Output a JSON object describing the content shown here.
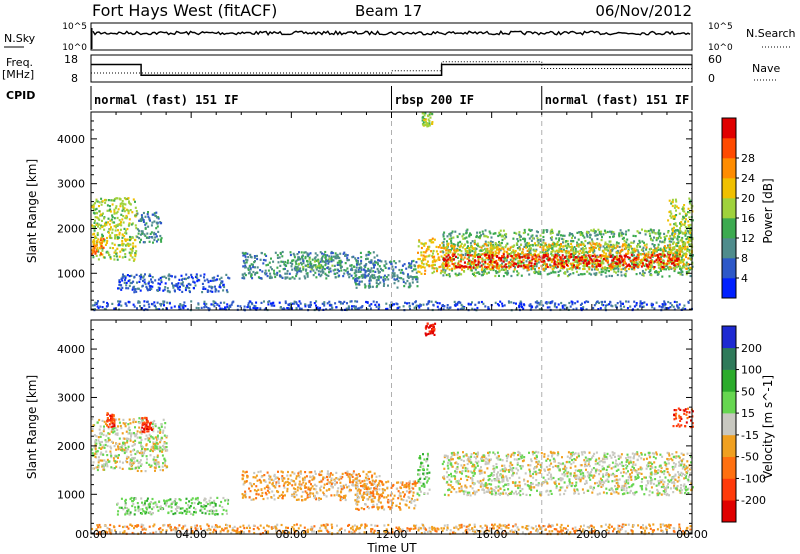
{
  "chart_data": {
    "type": "heatmap",
    "title": "Fort Hays West (fitACF)",
    "beam": "Beam 17",
    "date": "06/Nov/2012",
    "xlabel": "Time UT",
    "x_ticks": [
      "00:00",
      "04:00",
      "08:00",
      "12:00",
      "16:00",
      "20:00",
      "00:00"
    ],
    "xlim_hours": [
      0,
      24
    ],
    "top_panels": {
      "noise": {
        "left_label": "N.Sky",
        "right_label": "N.Search",
        "left_ticks": [
          "10^5",
          "10^0"
        ],
        "right_ticks": [
          "10^5",
          "10^0"
        ]
      },
      "frequency": {
        "left_label": "Freq.",
        "left_unit": "[MHz]",
        "left_ticks": [
          "18",
          "8"
        ],
        "right_label": "Nave",
        "right_ticks": [
          "60",
          "0"
        ],
        "freq_steps": [
          {
            "t0": 0.0,
            "t1": 2.0,
            "mhz": 14.5
          },
          {
            "t0": 2.0,
            "t1": 12.0,
            "mhz": 10.5
          },
          {
            "t0": 12.0,
            "t1": 14.0,
            "mhz": 10.5
          },
          {
            "t0": 14.0,
            "t1": 24.0,
            "mhz": 14.5
          }
        ],
        "nave_steps": [
          {
            "t0": 0.0,
            "t1": 2.0,
            "n": 20
          },
          {
            "t0": 2.0,
            "t1": 12.0,
            "n": 20
          },
          {
            "t0": 12.0,
            "t1": 14.0,
            "n": 25
          },
          {
            "t0": 14.0,
            "t1": 18.0,
            "n": 45
          },
          {
            "t0": 18.0,
            "t1": 24.0,
            "n": 30
          }
        ]
      },
      "cpid": {
        "label": "CPID",
        "segments": [
          {
            "t0": 0.0,
            "t1": 12.0,
            "name": "normal (fast) 151 IF"
          },
          {
            "t0": 12.0,
            "t1": 18.0,
            "name": "rbsp 200 IF"
          },
          {
            "t0": 18.0,
            "t1": 24.0,
            "name": "normal (fast) 151 IF"
          }
        ]
      }
    },
    "panels": [
      {
        "name": "power",
        "ylabel": "Slant Range [km]",
        "y_ticks": [
          1000,
          2000,
          3000,
          4000
        ],
        "ylim_km": [
          180,
          4600
        ],
        "colorbar": {
          "label": "Power [dB]",
          "ticks": [
            "4",
            "8",
            "12",
            "16",
            "20",
            "24",
            "28"
          ],
          "colors": [
            "#0020ff",
            "#2d58c8",
            "#4f8c8c",
            "#3caa50",
            "#9fd23c",
            "#f0c000",
            "#ff8c00",
            "#ff4a00",
            "#e00000"
          ]
        },
        "regions": [
          {
            "t0": 0.0,
            "t1": 1.8,
            "r0": 1300,
            "r1": 2700,
            "level": 4
          },
          {
            "t0": 0.0,
            "t1": 0.5,
            "r0": 1450,
            "r1": 1800,
            "level": 6
          },
          {
            "t0": 1.8,
            "t1": 2.8,
            "r0": 1700,
            "r1": 2400,
            "level": 2
          },
          {
            "t0": 1.0,
            "t1": 5.5,
            "r0": 600,
            "r1": 1000,
            "level": 1
          },
          {
            "t0": 6.0,
            "t1": 11.5,
            "r0": 900,
            "r1": 1500,
            "level": 2
          },
          {
            "t0": 8.0,
            "t1": 10.0,
            "r0": 1100,
            "r1": 1400,
            "level": 3
          },
          {
            "t0": 10.5,
            "t1": 13.0,
            "r0": 700,
            "r1": 1300,
            "level": 2
          },
          {
            "t0": 13.0,
            "t1": 14.0,
            "r0": 1000,
            "r1": 1800,
            "level": 5
          },
          {
            "t0": 13.2,
            "t1": 13.6,
            "r0": 4300,
            "r1": 4600,
            "level": 4
          },
          {
            "t0": 14.0,
            "t1": 24.0,
            "r0": 950,
            "r1": 2000,
            "level": 3
          },
          {
            "t0": 14.0,
            "t1": 24.0,
            "r0": 1100,
            "r1": 1700,
            "level": 5
          },
          {
            "t0": 14.0,
            "t1": 23.5,
            "r0": 1150,
            "r1": 1450,
            "level": 8
          },
          {
            "t0": 23.0,
            "t1": 24.0,
            "r0": 1400,
            "r1": 2700,
            "level": 4
          },
          {
            "t0": 0.0,
            "t1": 24.0,
            "r0": 200,
            "r1": 400,
            "level": 1
          }
        ]
      },
      {
        "name": "velocity",
        "ylabel": "Slant Range [km]",
        "y_ticks": [
          1000,
          2000,
          3000,
          4000
        ],
        "ylim_km": [
          180,
          4600
        ],
        "colorbar": {
          "label": "Velocity [m s^-1]",
          "ticks": [
            "200",
            "100",
            "50",
            "15",
            "-15",
            "-50",
            "-100",
            "-200"
          ],
          "colors": [
            "#1e2ad2",
            "#2f7a5a",
            "#2bab2b",
            "#66d650",
            "#c8c8c0",
            "#f0a020",
            "#ff7010",
            "#ff3a0a",
            "#e00000"
          ]
        },
        "regions": [
          {
            "t0": 0.0,
            "t1": 3.0,
            "r0": 1500,
            "r1": 2600,
            "level": 4
          },
          {
            "t0": 0.6,
            "t1": 0.9,
            "r0": 2400,
            "r1": 2700,
            "level": 7
          },
          {
            "t0": 2.0,
            "t1": 2.4,
            "r0": 2300,
            "r1": 2600,
            "level": 7
          },
          {
            "t0": 1.0,
            "t1": 5.5,
            "r0": 600,
            "r1": 950,
            "level": 3
          },
          {
            "t0": 6.0,
            "t1": 11.5,
            "r0": 900,
            "r1": 1500,
            "level": 5
          },
          {
            "t0": 10.5,
            "t1": 13.0,
            "r0": 700,
            "r1": 1300,
            "level": 5
          },
          {
            "t0": 13.0,
            "t1": 13.5,
            "r0": 1000,
            "r1": 1900,
            "level": 3
          },
          {
            "t0": 13.3,
            "t1": 13.7,
            "r0": 4300,
            "r1": 4600,
            "level": 8
          },
          {
            "t0": 14.0,
            "t1": 24.0,
            "r0": 1000,
            "r1": 1900,
            "level": 4
          },
          {
            "t0": 23.2,
            "t1": 24.0,
            "r0": 2400,
            "r1": 2800,
            "level": 7
          },
          {
            "t0": 0.0,
            "t1": 24.0,
            "r0": 200,
            "r1": 400,
            "level": 5
          }
        ]
      }
    ]
  }
}
